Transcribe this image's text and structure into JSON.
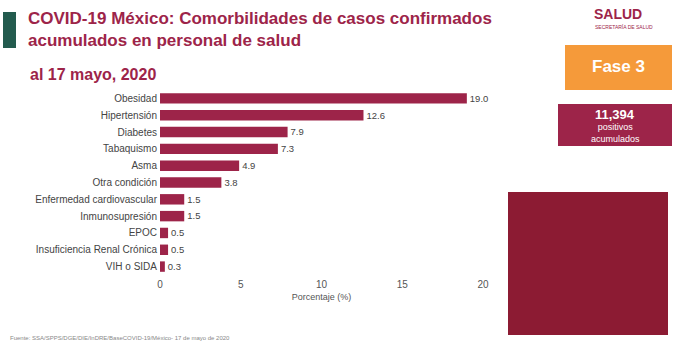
{
  "chart_data": {
    "type": "bar",
    "orientation": "horizontal",
    "title": "COVID-19 México: Comorbilidades de casos confirmados\nacumulados en personal de salud",
    "subtitle": "al 17 mayo, 2020",
    "x_label": "Porcentaje (%)",
    "categories": [
      "Obesidad",
      "Hipertensión",
      "Diabetes",
      "Tabaquismo",
      "Asma",
      "Otra condición",
      "Enfermedad cardiovascular",
      "Inmunosupresión",
      "EPOC",
      "Insuficiencia Renal Crónica",
      "VIH o SIDA"
    ],
    "values": [
      19.0,
      12.6,
      7.9,
      7.3,
      4.9,
      3.8,
      1.5,
      1.5,
      0.5,
      0.5,
      0.3
    ],
    "value_labels": [
      "19.0",
      "12.6",
      "7.9",
      "7.3",
      "4.9",
      "3.8",
      "1.5",
      "1.5",
      "0.5",
      "0.5",
      "0.3"
    ],
    "data_labels": true,
    "color": "#9d2449",
    "xlim": [
      0,
      20
    ],
    "xticks": [
      0,
      5,
      10,
      15,
      20
    ],
    "grid": false,
    "annotations": [
      "Fase 3",
      "11,394",
      "positivos\nacumulados",
      "SALUD",
      "SECRETARÍA DE SALUD",
      "Fuente: SSA/SPPS/DGE/DIE/InDRE/BaseCOVID-19/México- 17 de mayo de 2020"
    ]
  }
}
